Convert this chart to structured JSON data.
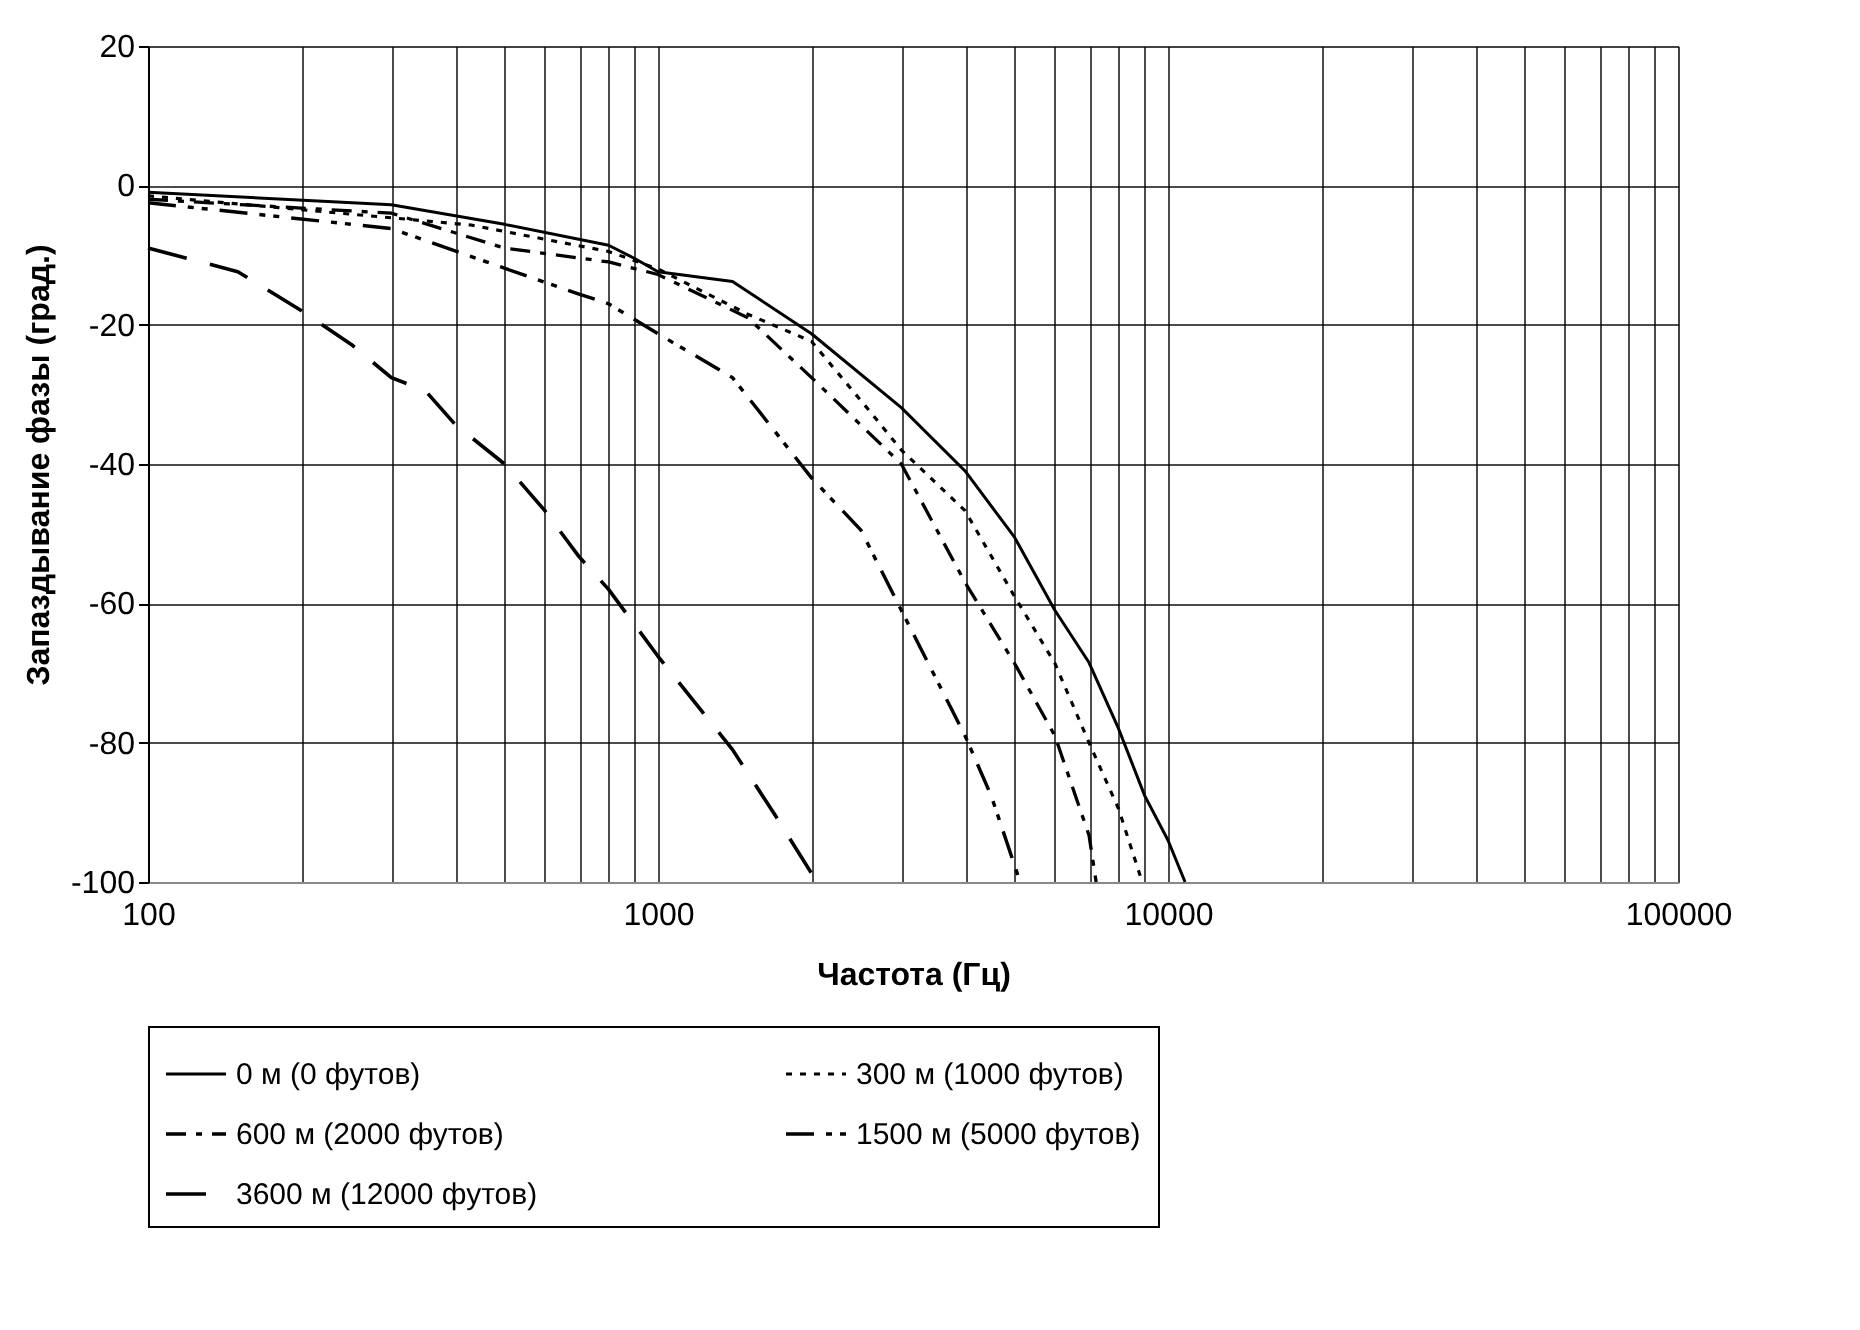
{
  "chart_data": {
    "type": "line",
    "xlabel": "Частота (Гц)",
    "ylabel": "Запаздывание фазы (град.)",
    "log": "x",
    "grid": true,
    "legend": "bottom",
    "marker": "none",
    "xlim": [
      100,
      100000
    ],
    "ylim": [
      -100,
      20
    ],
    "xticks": [
      100,
      {
        "value": 200,
        "label": null
      },
      {
        "value": 300,
        "label": null
      },
      {
        "value": 400,
        "label": null
      },
      {
        "value": 500,
        "label": null
      },
      {
        "value": 600,
        "label": null
      },
      {
        "value": 700,
        "label": null
      },
      {
        "value": 800,
        "label": null
      },
      {
        "value": 900,
        "label": null
      },
      1000,
      {
        "value": 2000,
        "label": null
      },
      {
        "value": 3000,
        "label": null
      },
      {
        "value": 4000,
        "label": null
      },
      {
        "value": 5000,
        "label": null
      },
      {
        "value": 6000,
        "label": null
      },
      {
        "value": 7000,
        "label": null
      },
      {
        "value": 8000,
        "label": null
      },
      {
        "value": 9000,
        "label": null
      },
      10000,
      {
        "value": 20000,
        "label": null
      },
      {
        "value": 30000,
        "label": null
      },
      {
        "value": 40000,
        "label": null
      },
      {
        "value": 50000,
        "label": null
      },
      {
        "value": 60000,
        "label": null
      },
      {
        "value": 70000,
        "label": null
      },
      {
        "value": 80000,
        "label": null
      },
      {
        "value": 90000,
        "label": null
      },
      100000
    ],
    "yticks": [
      20,
      0,
      -20,
      -40,
      -60,
      -80,
      -100
    ],
    "series": [
      {
        "name": "0 м (0 футов)",
        "color": "#000000",
        "line_style": "solid",
        "x": [
          100,
          300,
          500,
          800,
          900,
          1000,
          1400,
          2000,
          3000,
          4000,
          5000,
          6000,
          7000,
          8000,
          9000,
          10000,
          10800
        ],
        "values": [
          -1,
          -2.8,
          -5.6,
          -8.6,
          -10.5,
          -12.4,
          -13.8,
          -21.3,
          -31.9,
          -41,
          -50.5,
          -61,
          -68.5,
          -78,
          -87.6,
          -94,
          -100
        ]
      },
      {
        "name": "300 м (1000 футов)",
        "color": "#000000",
        "line_style": "dotted",
        "x": [
          100,
          430,
          800,
          1000,
          1500,
          2000,
          2600,
          3000,
          4000,
          5000,
          6000,
          7000,
          8000,
          8900
        ],
        "values": [
          -1.5,
          -5.7,
          -9.5,
          -12,
          -18.5,
          -22.4,
          -32.4,
          -38,
          -46.7,
          -59,
          -68.6,
          -80,
          -89.5,
          -100
        ]
      },
      {
        "name": "600 м (2000 футов)",
        "color": "#000000",
        "line_style": "dashed",
        "x": [
          100,
          300,
          500,
          800,
          1000,
          1500,
          2000,
          3000,
          4000,
          5000,
          6000,
          7000,
          7230
        ],
        "values": [
          -2,
          -4,
          -9,
          -11,
          -12.8,
          -19,
          -27.6,
          -40,
          -57,
          -68.6,
          -79,
          -93.3,
          -100
        ]
      },
      {
        "name": "1500 м (5000 футов)",
        "color": "#000000",
        "line_style": "dashed",
        "x": [
          100,
          300,
          500,
          700,
          800,
          1000,
          1400,
          2000,
          2500,
          3000,
          4000,
          4500,
          5130
        ],
        "values": [
          -2.5,
          -6.2,
          -11.9,
          -15.6,
          -17,
          -21.3,
          -27.6,
          -42,
          -49.5,
          -61,
          -79,
          -87.6,
          -100
        ]
      },
      {
        "name": "3600 м (12000 футов)",
        "color": "#000000",
        "line_style": "dashed",
        "x": [
          100,
          150,
          200,
          250,
          300,
          350,
          400,
          500,
          600,
          700,
          800,
          1000,
          1400,
          1700,
          2050
        ],
        "values": [
          -9,
          -12.4,
          -18,
          -22.8,
          -27.6,
          -29.5,
          -34.3,
          -40,
          -46.7,
          -53.3,
          -58,
          -67.6,
          -81,
          -90.5,
          -100
        ]
      }
    ]
  }
}
